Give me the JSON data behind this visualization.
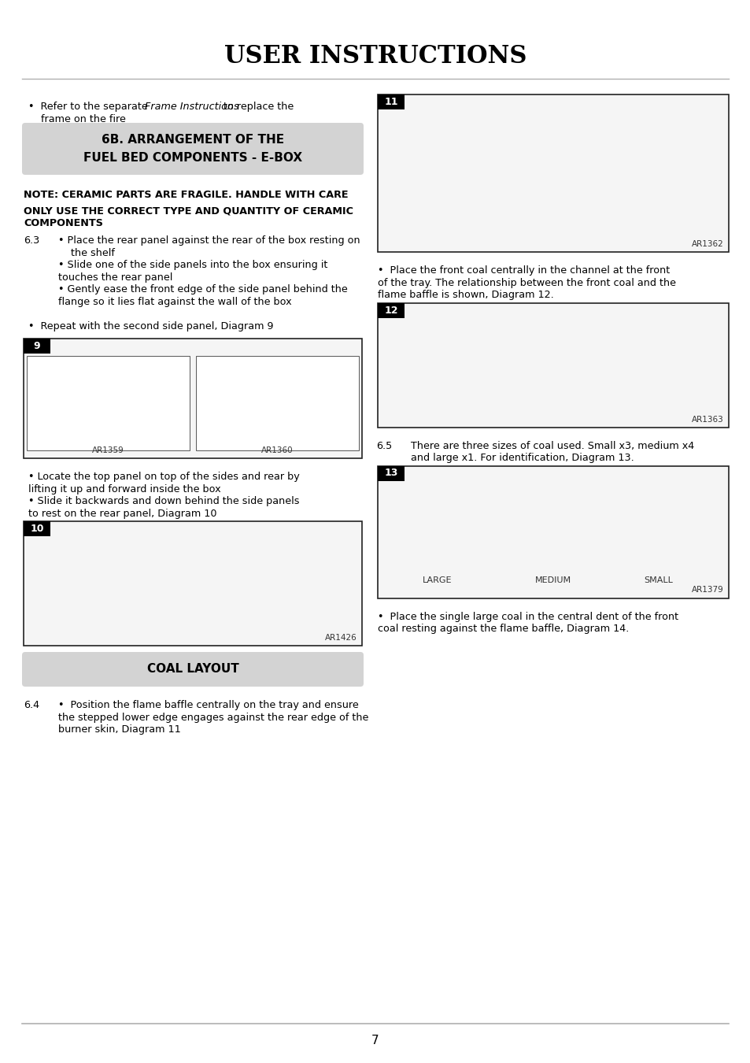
{
  "title": "USER INSTRUCTIONS",
  "bg_color": "#ffffff",
  "page_number": "7",
  "section_header": "6B. ARRANGEMENT OF THE\nFUEL BED COMPONENTS - E-BOX",
  "section_header_bg": "#d3d3d3",
  "coal_layout_header": "COAL LAYOUT",
  "coal_layout_header_bg": "#d3d3d3",
  "note1": "NOTE: CERAMIC PARTS ARE FRAGILE. HANDLE WITH CARE",
  "note2_line1": "ONLY USE THE CORRECT TYPE AND QUANTITY OF CERAMIC",
  "note2_line2": "COMPONENTS",
  "bullet_intro_1": "•  Refer to the separate ",
  "bullet_intro_italic": "Frame Instructions",
  "bullet_intro_2": " to replace the",
  "bullet_intro_3": "frame on the fire",
  "section_6_3_label": "6.3",
  "section_6_3_lines": [
    "• Place the rear panel against the rear of the box resting on",
    "    the shelf",
    "• Slide one of the side panels into the box ensuring it",
    "touches the rear panel",
    "• Gently ease the front edge of the side panel behind the",
    "flange so it lies flat against the wall of the box"
  ],
  "repeat_text": "•  Repeat with the second side panel, Diagram 9",
  "locate_lines": [
    "• Locate the top panel on top of the sides and rear by",
    "lifting it up and forward inside the box",
    "• Slide it backwards and down behind the side panels",
    "to rest on the rear panel, Diagram 10"
  ],
  "section_6_4_label": "6.4",
  "section_6_4_lines": [
    "•  Position the flame baffle centrally on the tray and ensure",
    "the stepped lower edge engages against the rear edge of the",
    "burner skin, Diagram 11"
  ],
  "right_bullet1_lines": [
    "•  Place the front coal centrally in the channel at the front",
    "of the tray. The relationship between the front coal and the",
    "flame baffle is shown, Diagram 12."
  ],
  "section_6_5_label": "6.5",
  "section_6_5_lines": [
    "There are three sizes of coal used. Small x3, medium x4",
    "and large x1. For identification, Diagram 13."
  ],
  "right_bullet2_lines": [
    "•  Place the single large coal in the central dent of the front",
    "coal resting against the flame baffle, Diagram 14."
  ],
  "diagram9_label": "9",
  "diagram9_ref1": "AR1359",
  "diagram9_ref2": "AR1360",
  "diagram10_label": "10",
  "diagram10_ref": "AR1426",
  "diagram11_label": "11",
  "diagram11_ref": "AR1362",
  "diagram12_label": "12",
  "diagram12_ref": "AR1363",
  "diagram13_label": "13",
  "diagram13_ref": "AR1379",
  "diagram13_large": "LARGE",
  "diagram13_medium": "MEDIUM",
  "diagram13_small": "SMALL",
  "line_color": "#b0b0b0",
  "box_border_color": "#222222",
  "diagram_bg": "#f5f5f5"
}
